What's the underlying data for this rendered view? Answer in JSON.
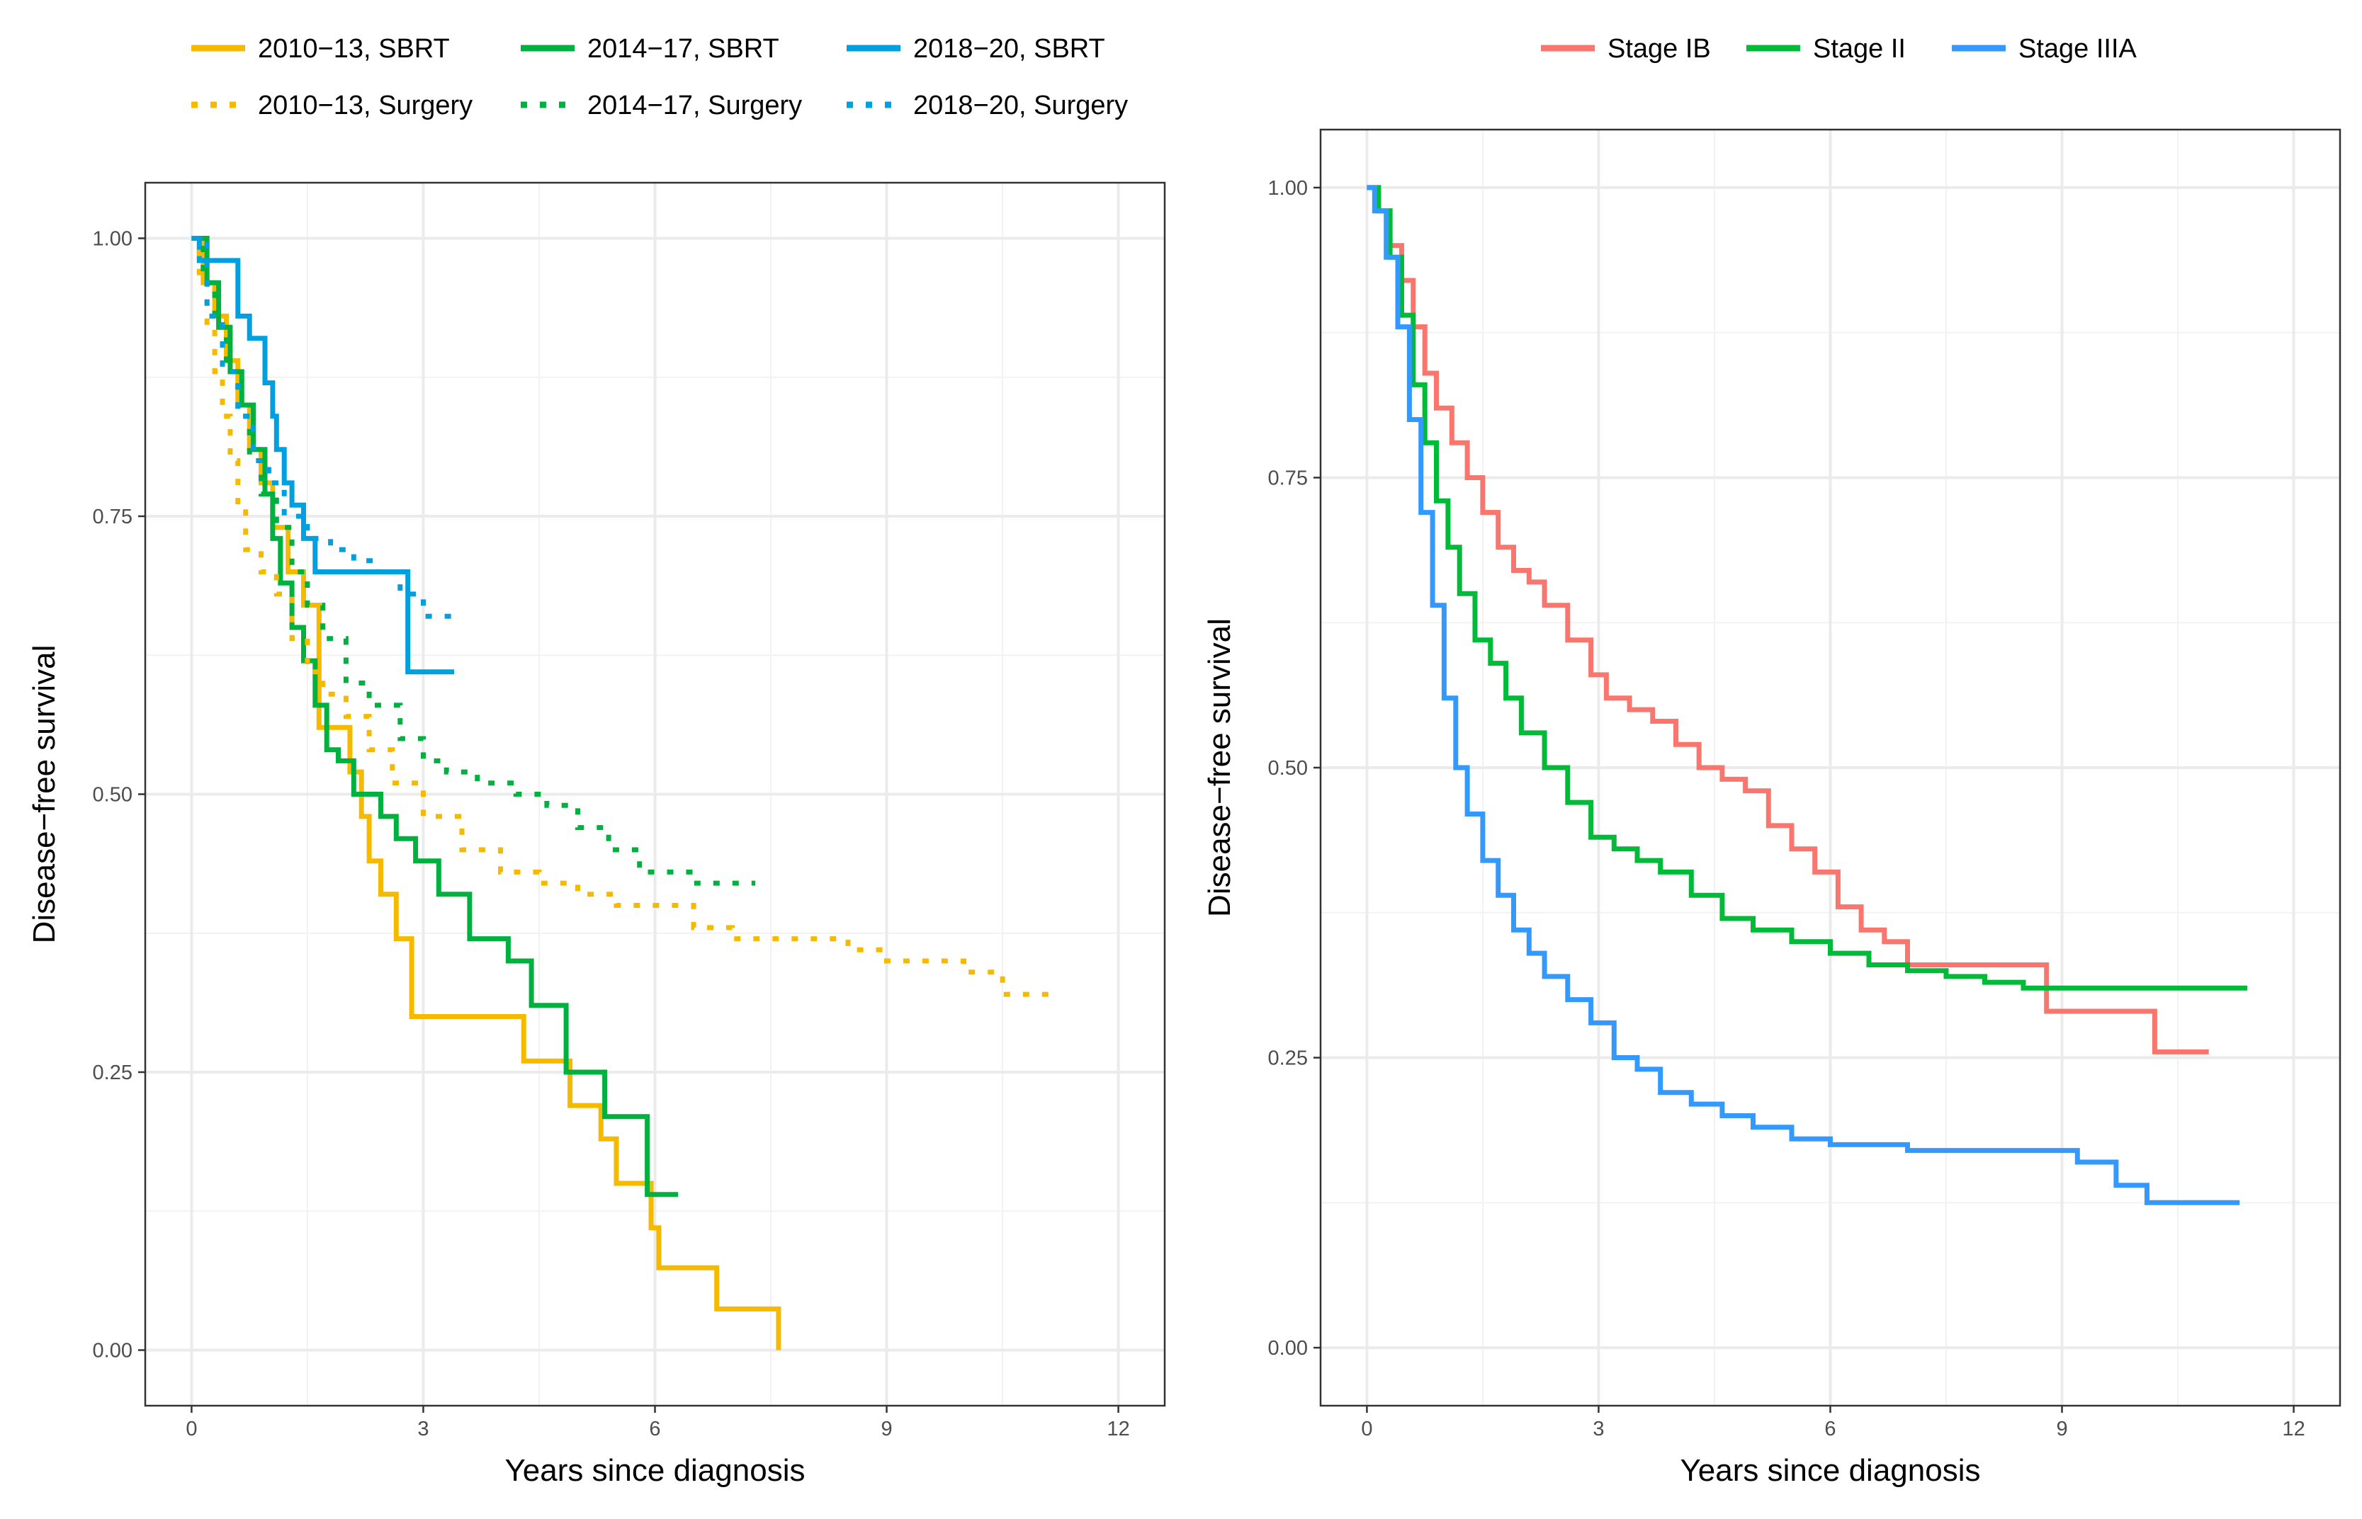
{
  "chart_data": [
    {
      "type": "line",
      "subtype": "kaplan-meier step",
      "xlabel": "Years since diagnosis",
      "ylabel": "Disease−free survival",
      "xlim": [
        -0.6,
        12.6
      ],
      "ylim": [
        -0.05,
        1.05
      ],
      "xticks": [
        0,
        3,
        6,
        9,
        12
      ],
      "xtick_labels": [
        "0",
        "3",
        "6",
        "9",
        "12"
      ],
      "yticks": [
        0,
        0.25,
        0.5,
        0.75,
        1
      ],
      "ytick_labels": [
        "0.00",
        "0.25",
        "0.50",
        "0.75",
        "1.00"
      ],
      "grid": true,
      "legend_position": "top",
      "series": [
        {
          "name": "2010−13, SBRT",
          "color": "#F5BA00",
          "dash": "solid",
          "x": [
            0,
            0.15,
            0.3,
            0.45,
            0.6,
            0.75,
            0.9,
            1.05,
            1.25,
            1.45,
            1.65,
            1.85,
            2.05,
            2.2,
            2.3,
            2.45,
            2.65,
            2.85,
            4.3,
            4.9,
            5.3,
            5.5,
            5.95,
            6.05,
            6.8,
            7.6
          ],
          "y": [
            1,
            0.96,
            0.93,
            0.89,
            0.85,
            0.81,
            0.78,
            0.74,
            0.7,
            0.67,
            0.56,
            0.56,
            0.52,
            0.48,
            0.44,
            0.41,
            0.37,
            0.3,
            0.26,
            0.22,
            0.19,
            0.15,
            0.11,
            0.074,
            0.037,
            0
          ]
        },
        {
          "name": "2014−17, SBRT",
          "color": "#00B140",
          "dash": "solid",
          "x": [
            0,
            0.2,
            0.35,
            0.5,
            0.65,
            0.8,
            0.95,
            1.05,
            1.15,
            1.3,
            1.45,
            1.6,
            1.75,
            1.9,
            2.1,
            2.45,
            2.65,
            2.9,
            3.2,
            3.6,
            4.1,
            4.4,
            4.85,
            5.35,
            5.9,
            6.3
          ],
          "y": [
            1,
            0.96,
            0.92,
            0.88,
            0.85,
            0.81,
            0.77,
            0.73,
            0.69,
            0.65,
            0.62,
            0.58,
            0.54,
            0.53,
            0.5,
            0.48,
            0.46,
            0.44,
            0.41,
            0.37,
            0.35,
            0.31,
            0.25,
            0.21,
            0.14,
            0.14
          ]
        },
        {
          "name": "2018−20, SBRT",
          "color": "#00A0E0",
          "dash": "solid",
          "x": [
            0,
            0.1,
            0.3,
            0.6,
            0.75,
            0.95,
            1.05,
            1.1,
            1.2,
            1.3,
            1.45,
            1.6,
            2.8,
            3.4
          ],
          "y": [
            1,
            0.98,
            0.98,
            0.93,
            0.91,
            0.87,
            0.84,
            0.81,
            0.78,
            0.76,
            0.73,
            0.7,
            0.61,
            0.61
          ]
        },
        {
          "name": "2010−13, Surgery",
          "color": "#F5BA00",
          "dash": "dotted",
          "x": [
            0,
            0.1,
            0.2,
            0.3,
            0.4,
            0.5,
            0.6,
            0.7,
            0.9,
            1.1,
            1.3,
            1.5,
            1.7,
            2.0,
            2.3,
            2.6,
            3.0,
            3.5,
            4.0,
            4.5,
            5.0,
            5.5,
            6.0,
            6.5,
            7.0,
            7.5,
            8.0,
            8.5,
            9.0,
            10.0,
            10.5,
            11.2
          ],
          "y": [
            1,
            0.96,
            0.92,
            0.88,
            0.84,
            0.8,
            0.76,
            0.72,
            0.7,
            0.68,
            0.64,
            0.61,
            0.59,
            0.57,
            0.54,
            0.51,
            0.48,
            0.45,
            0.43,
            0.42,
            0.41,
            0.4,
            0.4,
            0.38,
            0.37,
            0.37,
            0.37,
            0.36,
            0.35,
            0.34,
            0.32,
            0.32
          ]
        },
        {
          "name": "2014−17, Surgery",
          "color": "#00B140",
          "dash": "dotted",
          "x": [
            0,
            0.15,
            0.3,
            0.45,
            0.6,
            0.75,
            0.9,
            1.1,
            1.3,
            1.5,
            1.7,
            2.0,
            2.3,
            2.7,
            3.0,
            3.3,
            3.7,
            4.2,
            4.6,
            5.0,
            5.4,
            5.8,
            6.5,
            7.3
          ],
          "y": [
            1,
            0.96,
            0.92,
            0.88,
            0.84,
            0.8,
            0.77,
            0.74,
            0.7,
            0.67,
            0.64,
            0.6,
            0.58,
            0.55,
            0.53,
            0.52,
            0.51,
            0.5,
            0.49,
            0.47,
            0.45,
            0.43,
            0.42,
            0.42
          ]
        },
        {
          "name": "2018−20, Surgery",
          "color": "#00A0E0",
          "dash": "dotted",
          "x": [
            0,
            0.2,
            0.4,
            0.6,
            0.8,
            1.0,
            1.2,
            1.5,
            1.8,
            2.1,
            2.4,
            2.7,
            3.0,
            3.4
          ],
          "y": [
            1,
            0.93,
            0.88,
            0.84,
            0.8,
            0.78,
            0.75,
            0.73,
            0.72,
            0.71,
            0.7,
            0.68,
            0.66,
            0.66
          ]
        }
      ]
    },
    {
      "type": "line",
      "subtype": "kaplan-meier step",
      "xlabel": "Years since diagnosis",
      "ylabel": "Disease−free survival",
      "xlim": [
        -0.6,
        12.6
      ],
      "ylim": [
        -0.05,
        1.05
      ],
      "xticks": [
        0,
        3,
        6,
        9,
        12
      ],
      "xtick_labels": [
        "0",
        "3",
        "6",
        "9",
        "12"
      ],
      "yticks": [
        0,
        0.25,
        0.5,
        0.75,
        1
      ],
      "ytick_labels": [
        "0.00",
        "0.25",
        "0.50",
        "0.75",
        "1.00"
      ],
      "grid": true,
      "legend_position": "top",
      "series": [
        {
          "name": "Stage IB",
          "color": "#F8766D",
          "dash": "solid",
          "x": [
            0,
            0.15,
            0.3,
            0.45,
            0.6,
            0.75,
            0.9,
            1.1,
            1.3,
            1.5,
            1.7,
            1.9,
            2.1,
            2.3,
            2.6,
            2.9,
            3.1,
            3.4,
            3.7,
            4.0,
            4.3,
            4.6,
            4.9,
            5.2,
            5.5,
            5.8,
            6.1,
            6.4,
            6.7,
            7.0,
            8.0,
            8.5,
            8.8,
            9.5,
            10.2,
            10.9
          ],
          "y": [
            1,
            0.98,
            0.95,
            0.92,
            0.88,
            0.84,
            0.81,
            0.78,
            0.75,
            0.72,
            0.69,
            0.67,
            0.66,
            0.64,
            0.61,
            0.58,
            0.56,
            0.55,
            0.54,
            0.52,
            0.5,
            0.49,
            0.48,
            0.45,
            0.43,
            0.41,
            0.38,
            0.36,
            0.35,
            0.33,
            0.33,
            0.33,
            0.29,
            0.29,
            0.255,
            0.255
          ]
        },
        {
          "name": "Stage II",
          "color": "#00BA38",
          "dash": "solid",
          "x": [
            0,
            0.15,
            0.3,
            0.45,
            0.6,
            0.75,
            0.9,
            1.05,
            1.2,
            1.4,
            1.6,
            1.8,
            2.0,
            2.3,
            2.6,
            2.9,
            3.2,
            3.5,
            3.8,
            4.2,
            4.6,
            5.0,
            5.5,
            6.0,
            6.5,
            7.0,
            7.5,
            8.0,
            8.5,
            9.0,
            10.0,
            11.4
          ],
          "y": [
            1,
            0.98,
            0.94,
            0.89,
            0.83,
            0.78,
            0.73,
            0.69,
            0.65,
            0.61,
            0.59,
            0.56,
            0.53,
            0.5,
            0.47,
            0.44,
            0.43,
            0.42,
            0.41,
            0.39,
            0.37,
            0.36,
            0.35,
            0.34,
            0.33,
            0.325,
            0.32,
            0.315,
            0.31,
            0.31,
            0.31,
            0.31
          ]
        },
        {
          "name": "Stage IIIA",
          "color": "#3399FF",
          "dash": "solid",
          "x": [
            0,
            0.1,
            0.25,
            0.4,
            0.55,
            0.7,
            0.85,
            1.0,
            1.15,
            1.3,
            1.5,
            1.7,
            1.9,
            2.1,
            2.3,
            2.6,
            2.9,
            3.2,
            3.5,
            3.8,
            4.2,
            4.6,
            5.0,
            5.5,
            6.0,
            6.5,
            7.0,
            8.0,
            8.8,
            9.2,
            9.7,
            10.1,
            11.3
          ],
          "y": [
            1,
            0.98,
            0.94,
            0.88,
            0.8,
            0.72,
            0.64,
            0.56,
            0.5,
            0.46,
            0.42,
            0.39,
            0.36,
            0.34,
            0.32,
            0.3,
            0.28,
            0.25,
            0.24,
            0.22,
            0.21,
            0.2,
            0.19,
            0.18,
            0.175,
            0.175,
            0.17,
            0.17,
            0.17,
            0.16,
            0.14,
            0.125,
            0.125
          ]
        }
      ]
    }
  ]
}
